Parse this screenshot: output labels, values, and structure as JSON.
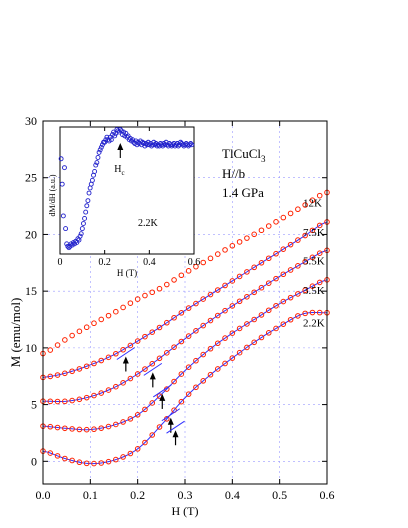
{
  "chart_data": {
    "type": "scatter",
    "xlabel": "H (T)",
    "ylabel": "M (emu/mol)",
    "xlim": [
      0,
      0.6
    ],
    "ylim": [
      -2,
      30
    ],
    "xticks": [
      "0.0",
      "0.1",
      "0.2",
      "0.3",
      "0.4",
      "0.5",
      "0.6"
    ],
    "yticks": [
      "0",
      "5",
      "10",
      "15",
      "20",
      "25",
      "30"
    ],
    "grid": "dashed",
    "annotation_lines": [
      "TlCuCl",
      "H//b",
      "1.4 GPa"
    ],
    "annotation_subscript": "3",
    "series": [
      {
        "name": "12K",
        "type": "scatter",
        "color": "#ff2200",
        "x": [
          0.0,
          0.05,
          0.1,
          0.15,
          0.2,
          0.25,
          0.3,
          0.35,
          0.4,
          0.45,
          0.5,
          0.55,
          0.6
        ],
        "y": [
          9.5,
          10.8,
          12.0,
          13.1,
          14.3,
          15.3,
          16.6,
          17.8,
          19.0,
          20.1,
          21.3,
          22.5,
          23.7
        ]
      },
      {
        "name": "7.5K",
        "type": "scatter",
        "color": "#ff2200",
        "fit_color": "#3030ff",
        "x": [
          0.0,
          0.05,
          0.1,
          0.15,
          0.2,
          0.25,
          0.3,
          0.35,
          0.4,
          0.45,
          0.5,
          0.55,
          0.6
        ],
        "y": [
          7.4,
          7.8,
          8.5,
          9.4,
          10.6,
          11.9,
          13.3,
          14.6,
          15.9,
          17.2,
          18.5,
          19.8,
          21.1
        ]
      },
      {
        "name": "5.5K",
        "type": "scatter",
        "color": "#ff2200",
        "fit_color": "#3030ff",
        "x": [
          0.0,
          0.05,
          0.1,
          0.15,
          0.2,
          0.25,
          0.3,
          0.35,
          0.4,
          0.45,
          0.5,
          0.55,
          0.6
        ],
        "y": [
          5.3,
          5.3,
          5.7,
          6.5,
          7.7,
          9.2,
          10.8,
          12.3,
          13.7,
          15.0,
          16.3,
          17.5,
          18.6
        ]
      },
      {
        "name": "3.5K",
        "type": "scatter",
        "color": "#ff2200",
        "fit_color": "#3030ff",
        "x": [
          0.0,
          0.05,
          0.1,
          0.15,
          0.2,
          0.25,
          0.3,
          0.35,
          0.4,
          0.45,
          0.5,
          0.55,
          0.6
        ],
        "y": [
          3.1,
          2.9,
          2.8,
          3.2,
          4.1,
          5.9,
          8.0,
          9.8,
          11.3,
          12.6,
          13.9,
          15.0,
          16.0
        ]
      },
      {
        "name": "2.2K",
        "type": "scatter",
        "color": "#ff2200",
        "fit_color": "#3030ff",
        "x": [
          0.0,
          0.05,
          0.1,
          0.15,
          0.2,
          0.25,
          0.3,
          0.35,
          0.4,
          0.45,
          0.5,
          0.55,
          0.6
        ],
        "y": [
          0.9,
          0.2,
          -0.2,
          0.1,
          1.1,
          3.2,
          5.6,
          7.5,
          9.1,
          10.6,
          11.9,
          13.0,
          13.1
        ]
      }
    ],
    "arrows": [
      {
        "x": 0.175,
        "y": 8.8
      },
      {
        "x": 0.232,
        "y": 7.4
      },
      {
        "x": 0.252,
        "y": 5.5
      },
      {
        "x": 0.27,
        "y": 3.4
      },
      {
        "x": 0.28,
        "y": 2.3
      }
    ],
    "inset": {
      "type": "scatter",
      "xlabel": "H (T)",
      "ylabel": "dM/dH (a.u.)",
      "xlim": [
        0,
        0.6
      ],
      "ylim": [
        0,
        1
      ],
      "xticks": [
        "0",
        "0.2",
        "0.4",
        "0.6"
      ],
      "color": "#2222cc",
      "label": "2.2K",
      "marker_label": "H",
      "marker_subscript": "c",
      "marker_x": 0.27,
      "x": [
        0.005,
        0.01,
        0.015,
        0.02,
        0.025,
        0.03,
        0.035,
        0.04,
        0.045,
        0.05,
        0.055,
        0.06,
        0.065,
        0.07,
        0.075,
        0.08,
        0.085,
        0.09,
        0.095,
        0.1,
        0.105,
        0.11,
        0.115,
        0.12,
        0.125,
        0.13,
        0.135,
        0.14,
        0.145,
        0.15,
        0.155,
        0.16,
        0.165,
        0.17,
        0.175,
        0.18,
        0.185,
        0.19,
        0.195,
        0.2,
        0.205,
        0.21,
        0.215,
        0.22,
        0.225,
        0.23,
        0.235,
        0.24,
        0.245,
        0.25,
        0.255,
        0.26,
        0.265,
        0.27,
        0.275,
        0.28,
        0.285,
        0.29,
        0.295,
        0.3,
        0.305,
        0.31,
        0.315,
        0.32,
        0.325,
        0.33,
        0.335,
        0.34,
        0.345,
        0.35,
        0.355,
        0.36,
        0.365,
        0.37,
        0.375,
        0.38,
        0.385,
        0.39,
        0.395,
        0.4,
        0.405,
        0.41,
        0.415,
        0.42,
        0.425,
        0.43,
        0.435,
        0.44,
        0.445,
        0.45,
        0.455,
        0.46,
        0.465,
        0.47,
        0.475,
        0.48,
        0.485,
        0.49,
        0.495,
        0.5,
        0.505,
        0.51,
        0.515,
        0.52,
        0.525,
        0.53,
        0.535,
        0.54,
        0.545,
        0.55,
        0.555,
        0.56,
        0.565,
        0.57,
        0.575,
        0.58,
        0.585,
        0.59
      ],
      "y": [
        0.75,
        0.55,
        0.3,
        0.68,
        0.2,
        0.08,
        0.06,
        0.05,
        0.06,
        0.08,
        0.07,
        0.09,
        0.08,
        0.1,
        0.09,
        0.12,
        0.11,
        0.14,
        0.16,
        0.2,
        0.24,
        0.28,
        0.33,
        0.38,
        0.42,
        0.48,
        0.52,
        0.55,
        0.58,
        0.62,
        0.65,
        0.7,
        0.72,
        0.76,
        0.8,
        0.82,
        0.84,
        0.86,
        0.88,
        0.88,
        0.9,
        0.92,
        0.9,
        0.89,
        0.92,
        0.9,
        0.94,
        0.96,
        0.93,
        0.95,
        0.98,
        0.97,
        0.96,
        0.98,
        0.97,
        0.94,
        0.96,
        0.93,
        0.95,
        0.92,
        0.93,
        0.9,
        0.91,
        0.89,
        0.9,
        0.88,
        0.87,
        0.89,
        0.86,
        0.88,
        0.87,
        0.89,
        0.86,
        0.88,
        0.87,
        0.85,
        0.87,
        0.86,
        0.88,
        0.86,
        0.87,
        0.85,
        0.86,
        0.88,
        0.86,
        0.87,
        0.85,
        0.86,
        0.85,
        0.87,
        0.86,
        0.85,
        0.87,
        0.86,
        0.88,
        0.86,
        0.85,
        0.87,
        0.86,
        0.85,
        0.86,
        0.87,
        0.85,
        0.86,
        0.87,
        0.85,
        0.86,
        0.88,
        0.87,
        0.86,
        0.85,
        0.86,
        0.87,
        0.86,
        0.85,
        0.86,
        0.87,
        0.86
      ]
    }
  }
}
